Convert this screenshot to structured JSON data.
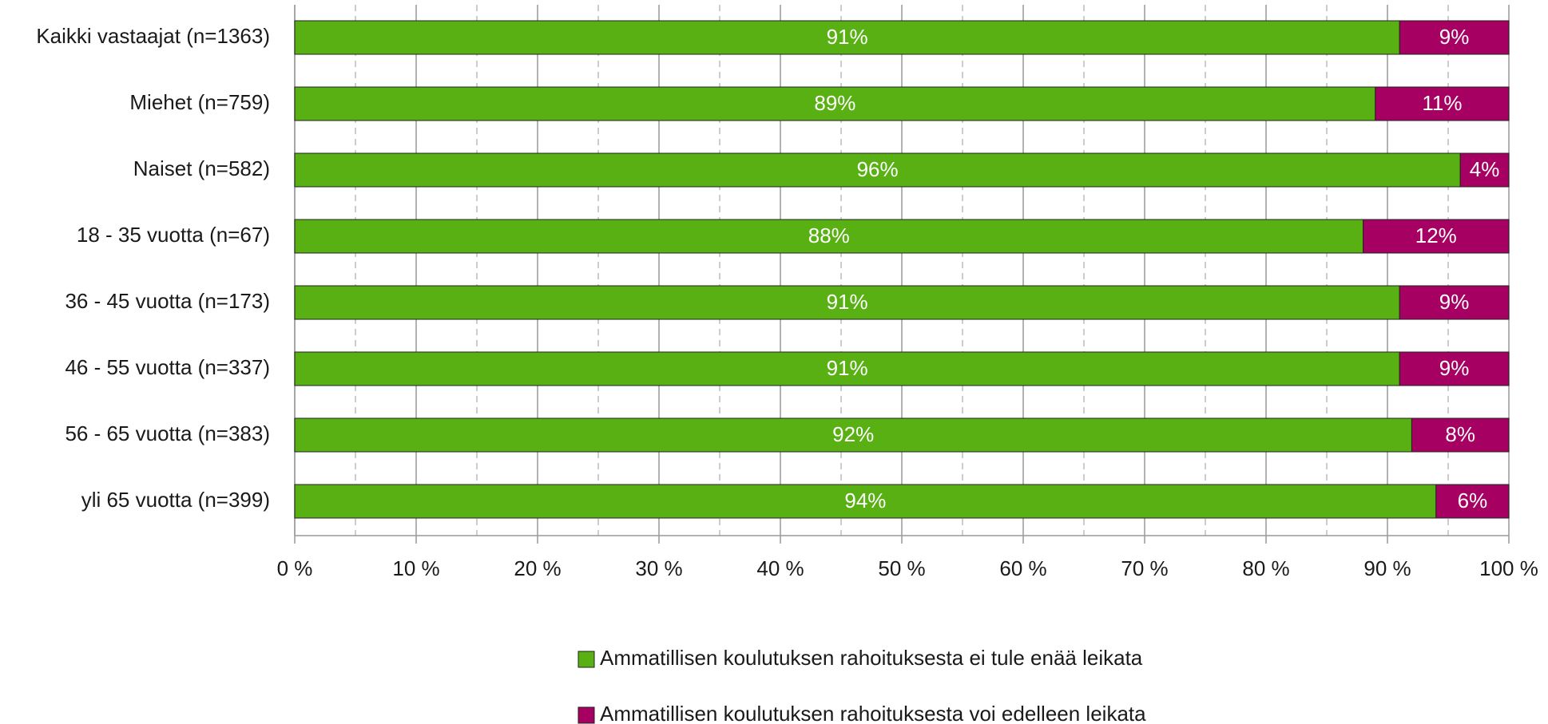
{
  "chart_data": {
    "type": "stacked_barh",
    "categories": [
      "Kaikki vastaajat (n=1363)",
      "Miehet (n=759)",
      "Naiset (n=582)",
      "18 - 35 vuotta (n=67)",
      "36 - 45 vuotta (n=173)",
      "46 - 55 vuotta (n=337)",
      "56 - 65 vuotta (n=383)",
      "yli 65 vuotta (n=399)"
    ],
    "series": [
      {
        "name": "Ammatillisen koulutuksen rahoituksesta ei tule enää leikata",
        "color": "#58b012",
        "values": [
          91,
          89,
          96,
          88,
          91,
          91,
          92,
          94
        ],
        "value_labels": [
          "91%",
          "89%",
          "96%",
          "88%",
          "91%",
          "91%",
          "92%",
          "94%"
        ]
      },
      {
        "name": "Ammatillisen koulutuksen rahoituksesta voi edelleen leikata",
        "color": "#a50062",
        "values": [
          9,
          11,
          4,
          12,
          9,
          9,
          8,
          6
        ],
        "value_labels": [
          "9%",
          "11%",
          "4%",
          "12%",
          "9%",
          "9%",
          "8%",
          "6%"
        ]
      }
    ],
    "xlim": [
      0,
      100
    ],
    "xticks": [
      {
        "value": 0,
        "label": "0 %"
      },
      {
        "value": 10,
        "label": "10 %"
      },
      {
        "value": 20,
        "label": "20 %"
      },
      {
        "value": 30,
        "label": "30 %"
      },
      {
        "value": 40,
        "label": "40 %"
      },
      {
        "value": 50,
        "label": "50 %"
      },
      {
        "value": 60,
        "label": "60 %"
      },
      {
        "value": 70,
        "label": "70 %"
      },
      {
        "value": 80,
        "label": "80 %"
      },
      {
        "value": 90,
        "label": "90 %"
      },
      {
        "value": 100,
        "label": "100 %"
      }
    ],
    "xminorticks": [
      5,
      15,
      25,
      35,
      45,
      55,
      65,
      75,
      85,
      95
    ],
    "grid": true,
    "legend": "bottom"
  }
}
